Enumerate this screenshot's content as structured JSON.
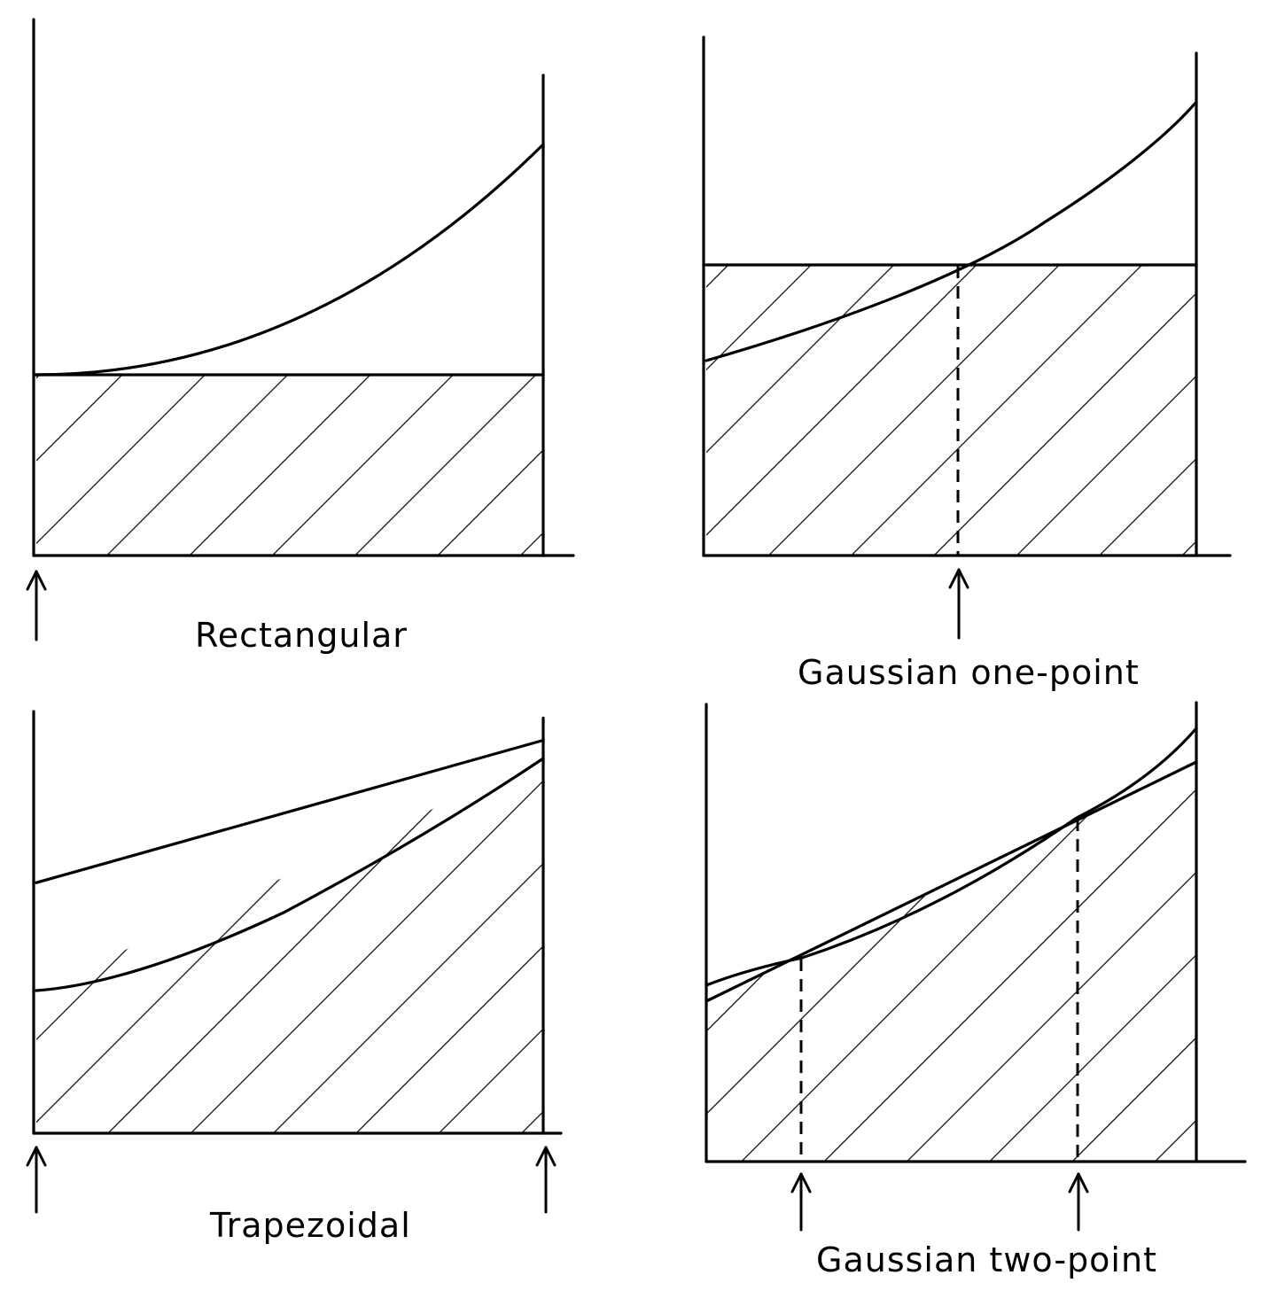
{
  "panels": [
    {
      "id": "rectangular",
      "caption": "Rectangular"
    },
    {
      "id": "gaussian-one-point",
      "caption": "Gaussian one-point"
    },
    {
      "id": "trapezoidal",
      "caption": "Trapezoidal"
    },
    {
      "id": "gaussian-two-point",
      "caption": "Gaussian two-point"
    }
  ]
}
